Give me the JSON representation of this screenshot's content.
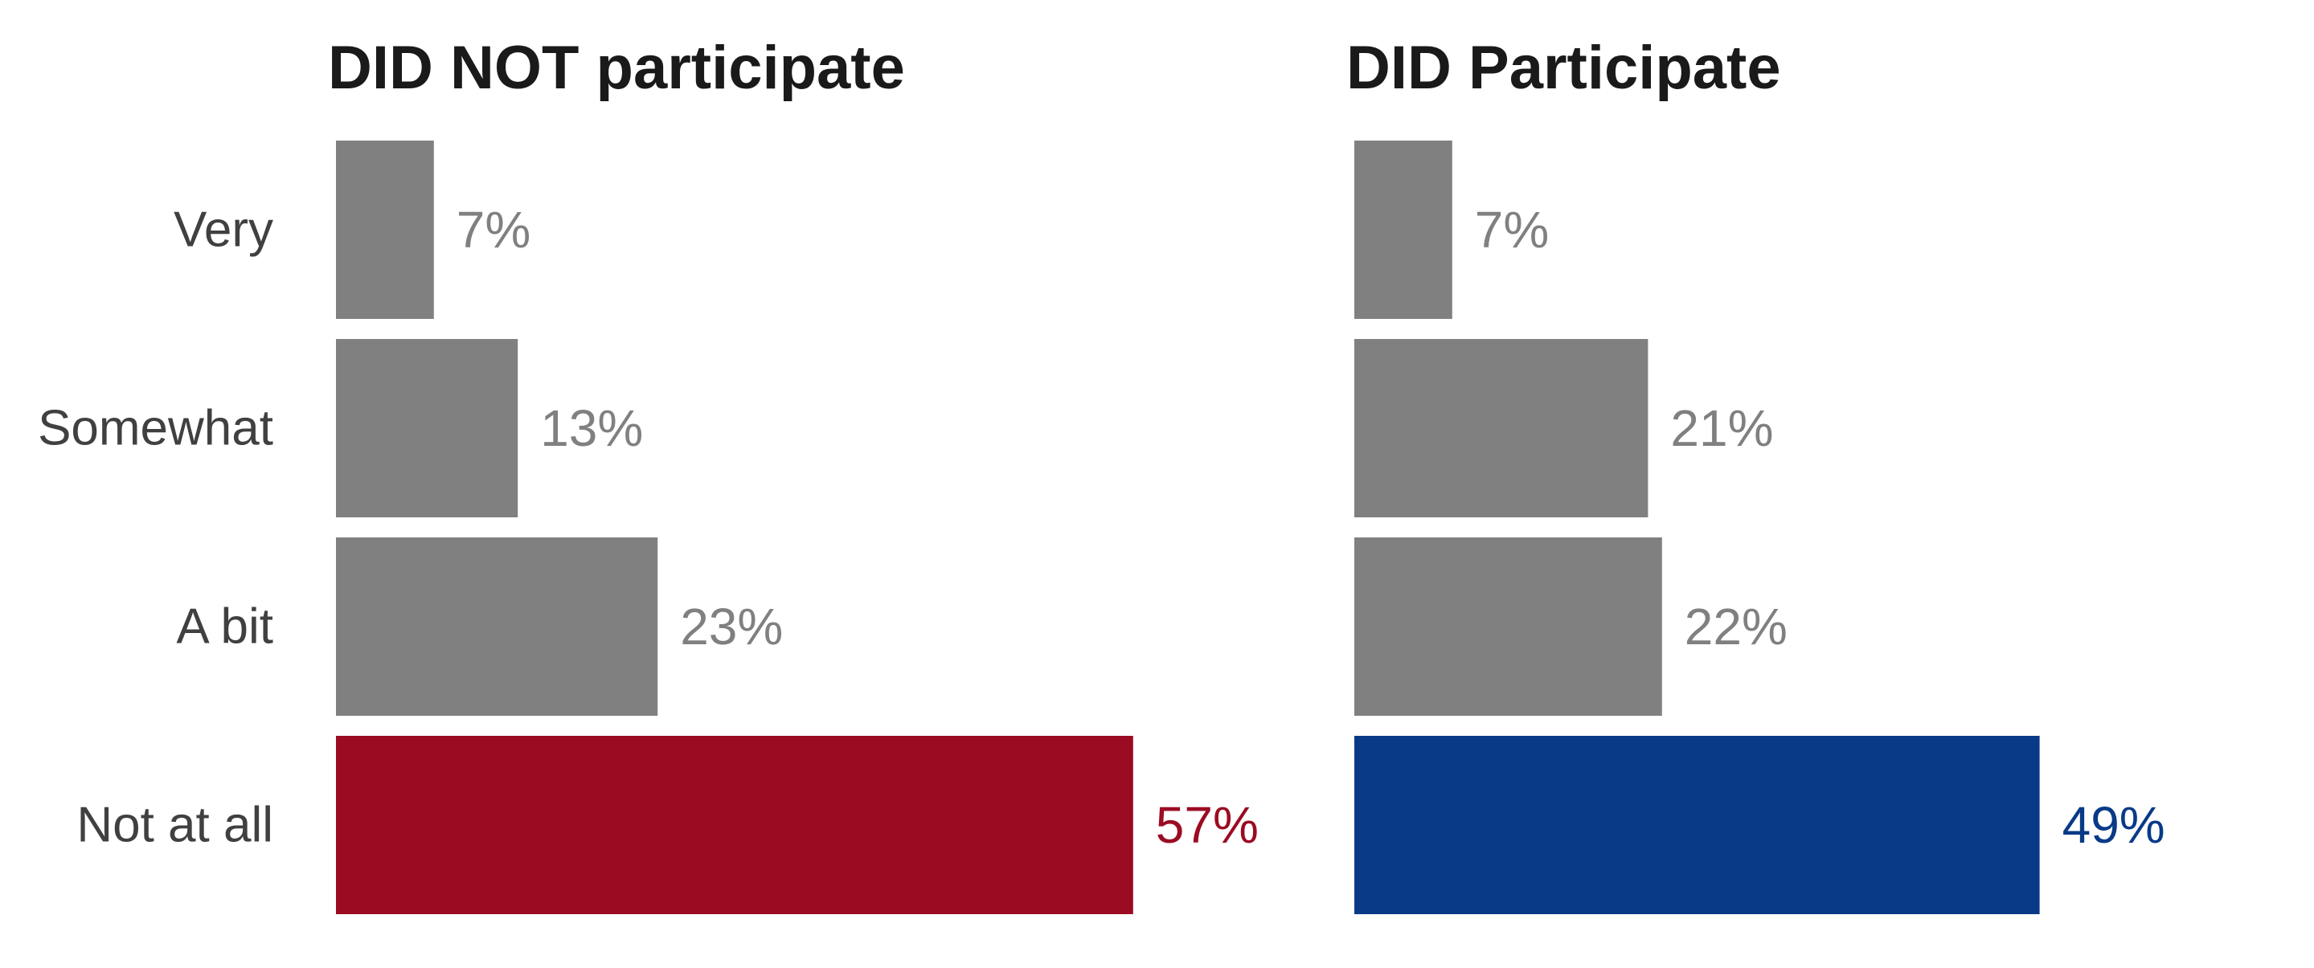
{
  "chart_data": [
    {
      "type": "bar",
      "orientation": "horizontal",
      "title": "DID NOT participate",
      "categories": [
        "Very",
        "Somewhat",
        "A bit",
        "Not at all"
      ],
      "values": [
        7,
        13,
        23,
        57
      ],
      "value_labels": [
        "7%",
        "13%",
        "23%",
        "57%"
      ],
      "xlim": [
        0,
        100
      ],
      "grid": false,
      "colors": {
        "default": "#808080",
        "highlight": "#9b0c23",
        "highlight_category": "Not at all"
      }
    },
    {
      "type": "bar",
      "orientation": "horizontal",
      "title": "DID Participate",
      "categories": [
        "Very",
        "Somewhat",
        "A bit",
        "Not at all"
      ],
      "values": [
        7,
        21,
        22,
        49
      ],
      "value_labels": [
        "7%",
        "21%",
        "22%",
        "49%"
      ],
      "xlim": [
        0,
        100
      ],
      "grid": false,
      "colors": {
        "default": "#808080",
        "highlight": "#083a87",
        "highlight_category": "Not at all"
      }
    }
  ]
}
